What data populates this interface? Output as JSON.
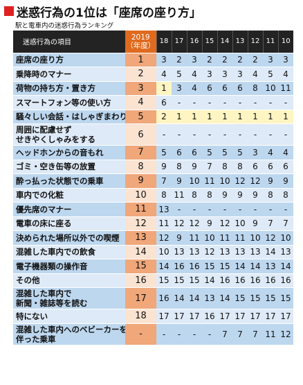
{
  "title": "迷惑行為の1位は「座席の座り方」",
  "subtitle": "駅と電車内の迷惑行為ランキング",
  "header": {
    "item": "迷惑行為の項目",
    "current_year": "2019",
    "current_sub": "（年度）"
  },
  "colors": {
    "title_mark": "#e02020",
    "header_bg": "#232323",
    "current_header": "#e06a1e",
    "highlight": "#fff5c2"
  },
  "chart_data": {
    "type": "table",
    "years": [
      "18",
      "17",
      "16",
      "15",
      "14",
      "13",
      "12",
      "11",
      "10"
    ],
    "rows": [
      {
        "item": [
          "座席の座り方"
        ],
        "current": "1",
        "values": [
          "3",
          "2",
          "3",
          "2",
          "2",
          "2",
          "2",
          "3",
          "3"
        ]
      },
      {
        "item": [
          "乗降時のマナー"
        ],
        "current": "2",
        "values": [
          "4",
          "5",
          "4",
          "3",
          "3",
          "3",
          "4",
          "5",
          "4"
        ]
      },
      {
        "item": [
          "荷物の持ち方・置き方"
        ],
        "current": "3",
        "values": [
          "1",
          "3",
          "4",
          "6",
          "6",
          "6",
          "8",
          "10",
          "11"
        ]
      },
      {
        "item": [
          "スマートフォン等の使い方"
        ],
        "current": "4",
        "values": [
          "6",
          "-",
          "-",
          "-",
          "-",
          "-",
          "-",
          "-",
          "-"
        ]
      },
      {
        "item": [
          "騒々しい会話・はしゃぎまわり"
        ],
        "current": "5",
        "values": [
          "2",
          "1",
          "1",
          "1",
          "1",
          "1",
          "1",
          "1",
          "1"
        ]
      },
      {
        "item": [
          "周囲に配慮せず",
          "せきやくしゃみをする"
        ],
        "current": "6",
        "values": [
          "-",
          "-",
          "-",
          "-",
          "-",
          "-",
          "-",
          "-",
          "-"
        ]
      },
      {
        "item": [
          "ヘッドホンからの音もれ"
        ],
        "current": "7",
        "values": [
          "5",
          "6",
          "6",
          "5",
          "5",
          "5",
          "3",
          "4",
          "4"
        ]
      },
      {
        "item": [
          "ゴミ・空き缶等の放置"
        ],
        "current": "8",
        "values": [
          "9",
          "8",
          "9",
          "7",
          "8",
          "8",
          "6",
          "6",
          "6"
        ]
      },
      {
        "item": [
          "酔っ払った状態での乗車"
        ],
        "current": "9",
        "values": [
          "7",
          "9",
          "10",
          "11",
          "10",
          "12",
          "12",
          "9",
          "9"
        ]
      },
      {
        "item": [
          "車内での化粧"
        ],
        "current": "10",
        "values": [
          "8",
          "11",
          "8",
          "8",
          "9",
          "9",
          "9",
          "8",
          "8"
        ]
      },
      {
        "item": [
          "優先席のマナー"
        ],
        "current": "11",
        "values": [
          "13",
          "-",
          "-",
          "-",
          "-",
          "-",
          "-",
          "-",
          "-"
        ]
      },
      {
        "item": [
          "電車の床に座る"
        ],
        "current": "12",
        "values": [
          "11",
          "12",
          "12",
          "9",
          "12",
          "10",
          "9",
          "7",
          "7"
        ]
      },
      {
        "item": [
          "決められた場所以外での喫煙"
        ],
        "current": "13",
        "values": [
          "12",
          "9",
          "11",
          "10",
          "11",
          "11",
          "10",
          "12",
          "10"
        ]
      },
      {
        "item": [
          "混雑した車内での飲食"
        ],
        "current": "14",
        "values": [
          "10",
          "13",
          "13",
          "12",
          "13",
          "13",
          "13",
          "14",
          "13"
        ]
      },
      {
        "item": [
          "電子機器類の操作音"
        ],
        "current": "15",
        "values": [
          "14",
          "16",
          "16",
          "15",
          "15",
          "14",
          "14",
          "13",
          "14"
        ]
      },
      {
        "item": [
          "その他"
        ],
        "current": "16",
        "values": [
          "15",
          "15",
          "15",
          "14",
          "16",
          "16",
          "16",
          "16",
          "16"
        ]
      },
      {
        "item": [
          "混雑した車内で",
          "新聞・雑誌等を読む"
        ],
        "current": "17",
        "values": [
          "16",
          "14",
          "14",
          "13",
          "14",
          "15",
          "15",
          "15",
          "15"
        ]
      },
      {
        "item": [
          "特にない"
        ],
        "current": "18",
        "values": [
          "17",
          "17",
          "17",
          "16",
          "17",
          "17",
          "17",
          "17",
          "17"
        ]
      },
      {
        "item": [
          "混雑した車内へのベビーカーを",
          "伴った乗車"
        ],
        "current": "-",
        "values": [
          "-",
          "-",
          "-",
          "-",
          "7",
          "7",
          "7",
          "11",
          "12"
        ]
      }
    ],
    "highlight": [
      [
        2,
        0
      ],
      [
        4,
        0
      ],
      [
        4,
        1
      ],
      [
        4,
        2
      ],
      [
        4,
        3
      ],
      [
        4,
        4
      ],
      [
        4,
        5
      ],
      [
        4,
        6
      ],
      [
        4,
        7
      ],
      [
        4,
        8
      ]
    ]
  }
}
